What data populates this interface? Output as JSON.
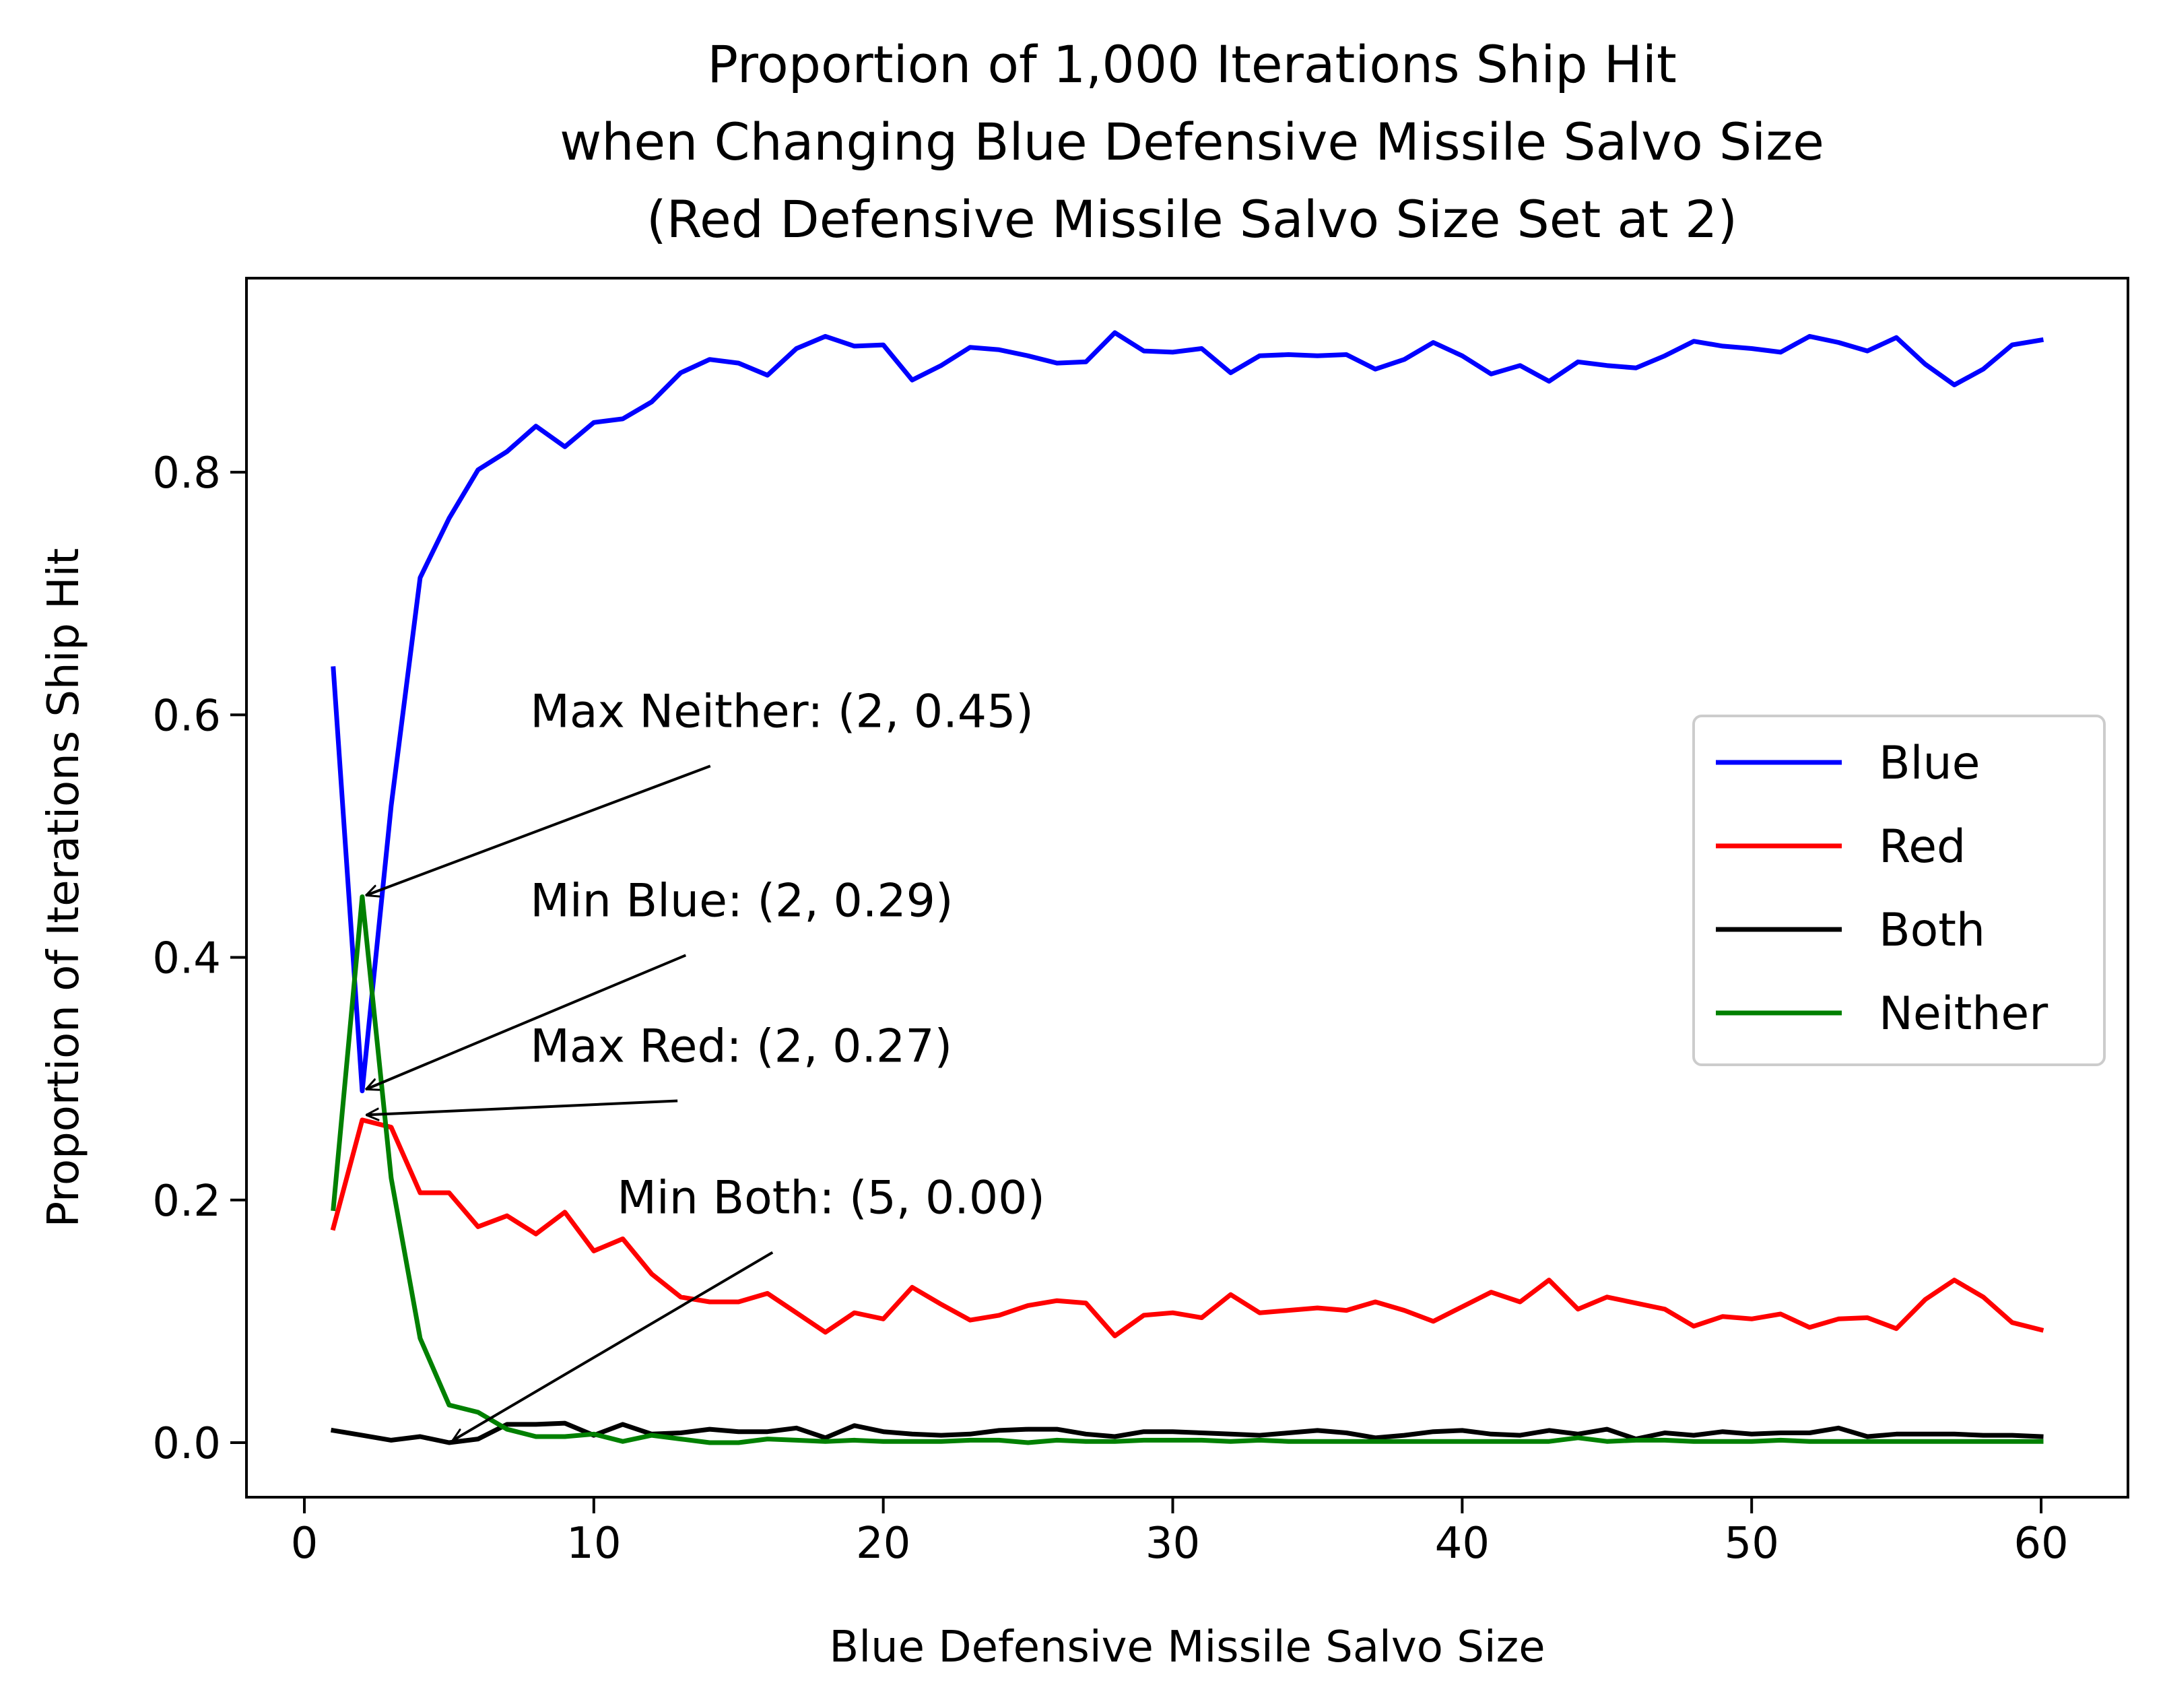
{
  "chart_data": {
    "type": "line",
    "title": [
      "Proportion of 1,000 Iterations Ship Hit",
      "when Changing Blue Defensive Missile Salvo Size",
      "(Red Defensive Missile Salvo Size Set at 2)"
    ],
    "xlabel": "Blue Defensive Missile Salvo Size",
    "ylabel": "Proportion of Iterations Ship Hit",
    "xlim": [
      -2,
      63
    ],
    "ylim": [
      -0.045,
      0.96
    ],
    "xticks": [
      0,
      10,
      20,
      30,
      40,
      50,
      60
    ],
    "xtick_labels": [
      "0",
      "10",
      "20",
      "30",
      "40",
      "50",
      "60"
    ],
    "yticks": [
      0.0,
      0.2,
      0.4,
      0.6,
      0.8
    ],
    "ytick_labels": [
      "0.0",
      "0.2",
      "0.4",
      "0.6",
      "0.8"
    ],
    "grid": false,
    "legend": "center-right",
    "x": [
      1,
      2,
      3,
      4,
      5,
      6,
      7,
      8,
      9,
      10,
      11,
      12,
      13,
      14,
      15,
      16,
      17,
      18,
      19,
      20,
      21,
      22,
      23,
      24,
      25,
      26,
      27,
      28,
      29,
      30,
      31,
      32,
      33,
      34,
      35,
      36,
      37,
      38,
      39,
      40,
      41,
      42,
      43,
      44,
      45,
      46,
      47,
      48,
      49,
      50,
      51,
      52,
      53,
      54,
      55,
      56,
      57,
      58,
      59,
      60
    ],
    "series": [
      {
        "name": "Blue",
        "color": "#0000ff",
        "values": [
          0.638,
          0.29,
          0.525,
          0.713,
          0.762,
          0.802,
          0.817,
          0.838,
          0.821,
          0.841,
          0.844,
          0.858,
          0.882,
          0.893,
          0.89,
          0.88,
          0.902,
          0.912,
          0.904,
          0.905,
          0.876,
          0.888,
          0.903,
          0.901,
          0.896,
          0.89,
          0.891,
          0.915,
          0.9,
          0.899,
          0.902,
          0.882,
          0.896,
          0.897,
          0.896,
          0.897,
          0.885,
          0.893,
          0.907,
          0.896,
          0.881,
          0.888,
          0.875,
          0.891,
          0.888,
          0.886,
          0.896,
          0.908,
          0.904,
          0.902,
          0.899,
          0.912,
          0.907,
          0.9,
          0.911,
          0.889,
          0.872,
          0.885,
          0.905,
          0.909
        ]
      },
      {
        "name": "Red",
        "color": "#ff0000",
        "values": [
          0.177,
          0.266,
          0.26,
          0.206,
          0.206,
          0.178,
          0.187,
          0.172,
          0.19,
          0.158,
          0.168,
          0.139,
          0.12,
          0.116,
          0.116,
          0.123,
          0.107,
          0.091,
          0.107,
          0.102,
          0.128,
          0.114,
          0.101,
          0.105,
          0.113,
          0.117,
          0.115,
          0.088,
          0.105,
          0.107,
          0.103,
          0.122,
          0.107,
          0.109,
          0.111,
          0.109,
          0.116,
          0.109,
          0.1,
          0.112,
          0.124,
          0.116,
          0.134,
          0.11,
          0.12,
          0.115,
          0.11,
          0.096,
          0.104,
          0.102,
          0.106,
          0.095,
          0.102,
          0.103,
          0.094,
          0.118,
          0.134,
          0.12,
          0.099,
          0.093
        ]
      },
      {
        "name": "Both",
        "color": "#000000",
        "values": [
          0.01,
          0.006,
          0.002,
          0.005,
          0.0,
          0.003,
          0.015,
          0.015,
          0.016,
          0.006,
          0.015,
          0.007,
          0.008,
          0.011,
          0.009,
          0.009,
          0.012,
          0.004,
          0.014,
          0.009,
          0.007,
          0.006,
          0.007,
          0.01,
          0.011,
          0.011,
          0.007,
          0.005,
          0.009,
          0.009,
          0.008,
          0.007,
          0.006,
          0.008,
          0.01,
          0.008,
          0.004,
          0.006,
          0.009,
          0.01,
          0.007,
          0.006,
          0.01,
          0.007,
          0.011,
          0.003,
          0.008,
          0.006,
          0.009,
          0.007,
          0.008,
          0.008,
          0.012,
          0.005,
          0.007,
          0.007,
          0.007,
          0.006,
          0.006,
          0.005
        ]
      },
      {
        "name": "Neither",
        "color": "#008000",
        "values": [
          0.193,
          0.45,
          0.218,
          0.086,
          0.031,
          0.025,
          0.011,
          0.005,
          0.005,
          0.007,
          0.001,
          0.006,
          0.003,
          0.0,
          0.0,
          0.003,
          0.002,
          0.001,
          0.002,
          0.001,
          0.001,
          0.001,
          0.002,
          0.002,
          0.0,
          0.002,
          0.001,
          0.001,
          0.002,
          0.002,
          0.002,
          0.001,
          0.002,
          0.001,
          0.001,
          0.001,
          0.001,
          0.001,
          0.001,
          0.001,
          0.001,
          0.001,
          0.001,
          0.004,
          0.001,
          0.002,
          0.002,
          0.001,
          0.001,
          0.001,
          0.002,
          0.001,
          0.001,
          0.001,
          0.001,
          0.001,
          0.001,
          0.001,
          0.001,
          0.001
        ]
      }
    ],
    "annotations": [
      {
        "name": "max-neither",
        "text": "Max Neither: (2, 0.45)",
        "x": 2,
        "y": 0.45,
        "text_x": 7.8,
        "text_y": 0.59
      },
      {
        "name": "min-blue",
        "text": "Min Blue: (2, 0.29)",
        "x": 2,
        "y": 0.29,
        "text_x": 7.8,
        "text_y": 0.434
      },
      {
        "name": "max-red",
        "text": "Max Red: (2, 0.27)",
        "x": 2,
        "y": 0.27,
        "text_x": 7.8,
        "text_y": 0.314
      },
      {
        "name": "min-both",
        "text": "Min Both: (5, 0.00)",
        "x": 5,
        "y": 0.0,
        "text_x": 10.8,
        "text_y": 0.189
      }
    ]
  }
}
